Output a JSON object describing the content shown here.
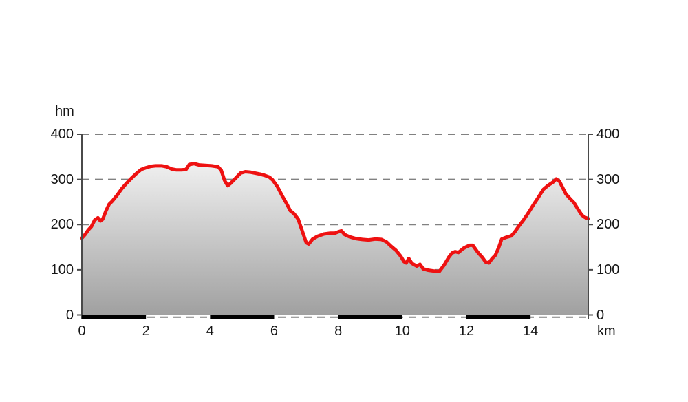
{
  "chart_data": {
    "type": "area",
    "ylabel": "hm",
    "xlabel": "km",
    "xlim": [
      0,
      15.8
    ],
    "ylim": [
      0,
      400
    ],
    "xticks": [
      0,
      2,
      4,
      6,
      8,
      10,
      12,
      14
    ],
    "yticks": [
      0,
      100,
      200,
      300,
      400
    ],
    "grid": "horizontal-dashed",
    "legend": "none",
    "series": [
      {
        "name": "elevation-profile",
        "x": [
          0,
          0.1,
          0.2,
          0.3,
          0.4,
          0.5,
          0.58,
          0.65,
          0.75,
          0.85,
          0.95,
          1.1,
          1.25,
          1.4,
          1.55,
          1.7,
          1.85,
          2.0,
          2.15,
          2.3,
          2.5,
          2.65,
          2.8,
          2.95,
          3.1,
          3.25,
          3.35,
          3.5,
          3.65,
          3.85,
          4.05,
          4.25,
          4.35,
          4.45,
          4.55,
          4.65,
          4.8,
          4.95,
          5.1,
          5.25,
          5.4,
          5.55,
          5.7,
          5.85,
          5.95,
          6.1,
          6.25,
          6.4,
          6.5,
          6.62,
          6.75,
          6.88,
          7.0,
          7.08,
          7.2,
          7.35,
          7.55,
          7.75,
          7.9,
          8.0,
          8.1,
          8.2,
          8.35,
          8.55,
          8.75,
          8.95,
          9.15,
          9.35,
          9.5,
          9.65,
          9.8,
          9.95,
          10.05,
          10.12,
          10.2,
          10.3,
          10.45,
          10.55,
          10.65,
          10.8,
          11.0,
          11.15,
          11.3,
          11.45,
          11.55,
          11.65,
          11.75,
          11.9,
          12.0,
          12.1,
          12.2,
          12.35,
          12.5,
          12.6,
          12.7,
          12.8,
          12.9,
          13.0,
          13.1,
          13.25,
          13.4,
          13.5,
          13.65,
          13.8,
          13.95,
          14.1,
          14.25,
          14.4,
          14.55,
          14.7,
          14.8,
          14.9,
          15.0,
          15.1,
          15.25,
          15.35,
          15.5,
          15.6,
          15.7,
          15.8
        ],
        "y": [
          170,
          178,
          188,
          196,
          210,
          215,
          208,
          212,
          230,
          245,
          252,
          265,
          280,
          292,
          303,
          313,
          322,
          326,
          329,
          330,
          330,
          328,
          323,
          321,
          321,
          322,
          333,
          335,
          332,
          331,
          330,
          328,
          320,
          298,
          286,
          292,
          303,
          314,
          317,
          316,
          314,
          312,
          309,
          305,
          299,
          284,
          264,
          245,
          231,
          224,
          212,
          185,
          160,
          157,
          168,
          174,
          179,
          181,
          181,
          184,
          186,
          178,
          173,
          169,
          167,
          166,
          168,
          167,
          162,
          152,
          143,
          130,
          118,
          115,
          125,
          114,
          108,
          112,
          102,
          99,
          97,
          96,
          110,
          128,
          137,
          140,
          138,
          147,
          151,
          154,
          154,
          139,
          127,
          117,
          115,
          125,
          132,
          148,
          168,
          172,
          175,
          183,
          198,
          212,
          228,
          245,
          261,
          278,
          287,
          294,
          301,
          296,
          282,
          268,
          256,
          249,
          232,
          221,
          216,
          213
        ]
      }
    ],
    "distance_bar": {
      "interval_km": 2,
      "segments": [
        {
          "from": 0,
          "to": 2,
          "color": "black"
        },
        {
          "from": 2,
          "to": 4,
          "color": "white"
        },
        {
          "from": 4,
          "to": 6,
          "color": "black"
        },
        {
          "from": 6,
          "to": 8,
          "color": "white"
        },
        {
          "from": 8,
          "to": 10,
          "color": "black"
        },
        {
          "from": 10,
          "to": 12,
          "color": "white"
        },
        {
          "from": 12,
          "to": 14,
          "color": "black"
        },
        {
          "from": 14,
          "to": 15.8,
          "color": "white"
        }
      ]
    },
    "colors": {
      "line": "#ee1111",
      "fill_top": "#ffffff",
      "fill_bottom": "#a0a0a0",
      "grid": "#818181",
      "axis": "#4a4a4a",
      "text": "#151515",
      "bar_black": "#000000"
    }
  }
}
